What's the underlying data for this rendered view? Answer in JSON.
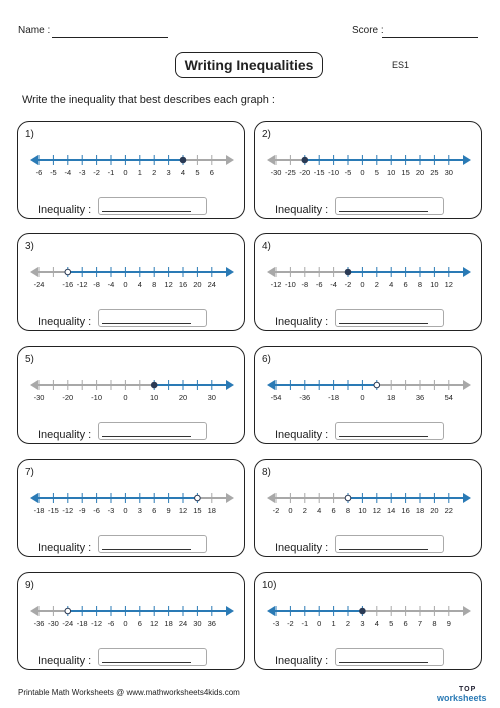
{
  "header": {
    "name_label": "Name :",
    "score_label": "Score :",
    "title": "Writing Inequalities",
    "code": "ES1",
    "instruction": "Write the inequality that best describes each graph :"
  },
  "inequality_label": "Inequality :",
  "colors": {
    "blue": "#2a7ab5",
    "gray": "#a8a8a8",
    "point": "#2a3a55"
  },
  "problems": [
    {
      "num": "1)",
      "ticks": [
        -6,
        -5,
        -4,
        -3,
        -2,
        -1,
        0,
        1,
        2,
        3,
        4,
        5,
        6
      ],
      "labels": [
        -6,
        -5,
        -4,
        -3,
        -2,
        -1,
        0,
        1,
        2,
        3,
        4,
        5,
        6
      ],
      "point": 4,
      "closed": true,
      "dir": "left"
    },
    {
      "num": "2)",
      "ticks": [
        -30,
        -25,
        -20,
        -15,
        -10,
        -5,
        0,
        5,
        10,
        15,
        20,
        25,
        30
      ],
      "labels": [
        -30,
        -25,
        -20,
        -15,
        -10,
        -5,
        0,
        5,
        10,
        15,
        20,
        25,
        30
      ],
      "point": -20,
      "closed": true,
      "dir": "right"
    },
    {
      "num": "3)",
      "ticks": [
        -24,
        -20,
        -16,
        -12,
        -8,
        -4,
        0,
        4,
        8,
        12,
        16,
        20,
        24
      ],
      "labels": [
        -24,
        -16,
        -12,
        -8,
        -4,
        0,
        4,
        8,
        12,
        16,
        20,
        24
      ],
      "point": -16,
      "closed": false,
      "dir": "right"
    },
    {
      "num": "4)",
      "ticks": [
        -12,
        -10,
        -8,
        -6,
        -4,
        -2,
        0,
        2,
        4,
        6,
        8,
        10,
        12
      ],
      "labels": [
        -12,
        -10,
        -8,
        -6,
        -4,
        -2,
        0,
        2,
        4,
        6,
        8,
        10,
        12
      ],
      "point": -2,
      "closed": true,
      "dir": "right"
    },
    {
      "num": "5)",
      "ticks": [
        -30,
        -25,
        -20,
        -15,
        -10,
        -5,
        0,
        5,
        10,
        15,
        20,
        25,
        30
      ],
      "labels": [
        -30,
        -20,
        -10,
        0,
        10,
        20,
        30
      ],
      "point": 10,
      "closed": true,
      "dir": "right"
    },
    {
      "num": "6)",
      "ticks": [
        -54,
        -45,
        -36,
        -27,
        -18,
        -9,
        0,
        9,
        18,
        27,
        36,
        45,
        54
      ],
      "labels": [
        -54,
        -36,
        -18,
        0,
        18,
        36,
        54
      ],
      "point": 9,
      "closed": false,
      "dir": "left"
    },
    {
      "num": "7)",
      "ticks": [
        -18,
        -15,
        -12,
        -9,
        -6,
        -3,
        0,
        3,
        6,
        9,
        12,
        15,
        18
      ],
      "labels": [
        -18,
        -15,
        -12,
        -9,
        -6,
        -3,
        0,
        3,
        6,
        9,
        12,
        15,
        18
      ],
      "point": 15,
      "closed": false,
      "dir": "left"
    },
    {
      "num": "8)",
      "ticks": [
        -2,
        0,
        2,
        4,
        6,
        8,
        10,
        12,
        14,
        16,
        18,
        20,
        22
      ],
      "labels": [
        -2,
        0,
        2,
        4,
        6,
        8,
        10,
        12,
        14,
        16,
        18,
        20,
        22
      ],
      "point": 8,
      "closed": false,
      "dir": "right"
    },
    {
      "num": "9)",
      "ticks": [
        -36,
        -30,
        -24,
        -18,
        -12,
        -6,
        0,
        6,
        12,
        18,
        24,
        30,
        36
      ],
      "labels": [
        -36,
        -30,
        -24,
        -18,
        -12,
        -6,
        0,
        6,
        12,
        18,
        24,
        30,
        36
      ],
      "point": -24,
      "closed": false,
      "dir": "right"
    },
    {
      "num": "10)",
      "ticks": [
        -3,
        -2,
        -1,
        0,
        1,
        2,
        3,
        4,
        5,
        6,
        7,
        8,
        9
      ],
      "labels": [
        -3,
        -2,
        -1,
        0,
        1,
        2,
        3,
        4,
        5,
        6,
        7,
        8,
        9
      ],
      "point": 3,
      "closed": true,
      "dir": "left"
    }
  ],
  "footer": {
    "text": "Printable Math Worksheets @ www.mathworksheets4kids.com",
    "logo_top": "TOP",
    "logo_bottom": "worksheets"
  }
}
